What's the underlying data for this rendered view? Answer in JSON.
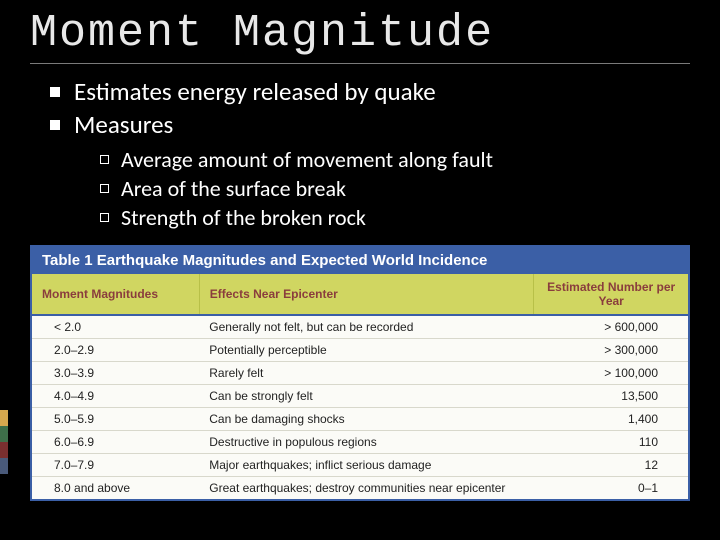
{
  "title": "Moment Magnitude",
  "bullets": [
    "Estimates energy released by quake",
    "Measures"
  ],
  "sub_bullets": [
    "Average amount of movement along fault",
    "Area of the surface break",
    "Strength of the broken rock"
  ],
  "accent_colors": [
    "#d6a84e",
    "#3e6f49",
    "#7a2f2f",
    "#4a5a7a"
  ],
  "table": {
    "title": "Table 1  Earthquake Magnitudes and Expected World Incidence",
    "title_bg": "#3b5fa6",
    "title_color": "#ffffff",
    "header_bg": "#d0d661",
    "header_color": "#8a3d3d",
    "columns": [
      "Moment Magnitudes",
      "Effects Near Epicenter",
      "Estimated Number per Year"
    ],
    "rows": [
      [
        "< 2.0",
        "Generally not felt, but can be recorded",
        "> 600,000"
      ],
      [
        "2.0–2.9",
        "Potentially perceptible",
        "> 300,000"
      ],
      [
        "3.0–3.9",
        "Rarely felt",
        "> 100,000"
      ],
      [
        "4.0–4.9",
        "Can be strongly felt",
        "13,500"
      ],
      [
        "5.0–5.9",
        "Can be damaging shocks",
        "1,400"
      ],
      [
        "6.0–6.9",
        "Destructive in populous regions",
        "110"
      ],
      [
        "7.0–7.9",
        "Major earthquakes; inflict serious damage",
        "12"
      ],
      [
        "8.0 and above",
        "Great earthquakes; destroy communities near epicenter",
        "0–1"
      ]
    ]
  }
}
